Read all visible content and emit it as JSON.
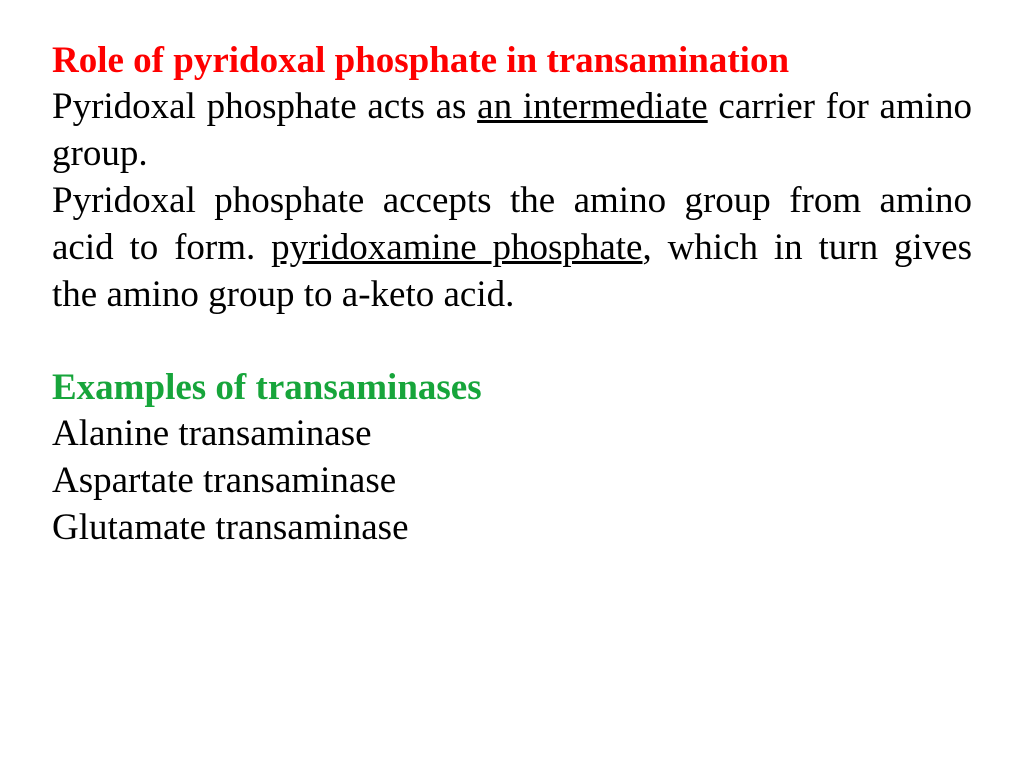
{
  "title_color": "#fe0000",
  "subtitle_color": "#17a53b",
  "body_color": "#000000",
  "font_family": "Times New Roman",
  "font_size_pt": 28,
  "underline_phrases": [
    "an intermediate",
    "pyridoxamine phosphate"
  ],
  "section1": {
    "title": "Role of pyridoxal phosphate in transamination",
    "para1_pre": "Pyridoxal phosphate acts as ",
    "para1_u": "an intermediate",
    "para1_post": " carrier for amino group.",
    "para2_pre": "Pyridoxal phosphate accepts the amino group from amino acid to form. ",
    "para2_u": "pyridoxamine phosphate",
    "para2_post": ", which in turn gives the amino group to a-keto acid."
  },
  "section2": {
    "title": "Examples of transaminases",
    "items": {
      "0": "Alanine transaminase",
      "1": "Aspartate transaminase",
      "2": "Glutamate transaminase"
    }
  }
}
